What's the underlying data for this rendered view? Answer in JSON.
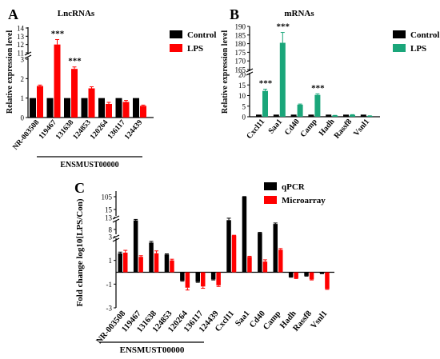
{
  "colors": {
    "control": "#000000",
    "lps": "#ff0000",
    "lps_b": "#1aa67a",
    "microarray": "#ff0000",
    "qpcr": "#000000"
  },
  "chart_data": [
    {
      "panel": "A",
      "title": "LncRNAs",
      "type": "bar",
      "ylabel": "Relative expression level",
      "categories": [
        "NR-003508",
        "119467",
        "131638",
        "124853",
        "120264",
        "136117",
        "124439"
      ],
      "group_label": "ENSMUST00000",
      "y_ticks": [
        "0",
        "1",
        "2",
        "3",
        "11",
        "12",
        "13",
        "14"
      ],
      "series": [
        {
          "name": "Control",
          "values": [
            1,
            1,
            1,
            1,
            1,
            1,
            1
          ],
          "errors": [
            0,
            0,
            0,
            0,
            0,
            0,
            0
          ]
        },
        {
          "name": "LPS",
          "values": [
            1.62,
            12.0,
            2.5,
            1.5,
            0.7,
            0.8,
            0.6
          ],
          "errors": [
            0.05,
            0.6,
            0.1,
            0.08,
            0.08,
            0.08,
            0.04
          ]
        }
      ],
      "annotations": [
        {
          "category": "119467",
          "text": "***"
        },
        {
          "category": "131638",
          "text": "***"
        }
      ],
      "legend": "top-right"
    },
    {
      "panel": "B",
      "title": "mRNAs",
      "type": "bar",
      "ylabel": "Relative expression level",
      "categories": [
        "Cxcl11",
        "Saa1",
        "Cd40",
        "Camp",
        "Hadh",
        "Rassf8",
        "Vsnl1"
      ],
      "y_ticks": [
        "0",
        "5",
        "10",
        "15",
        "20",
        "165",
        "170",
        "175",
        "180",
        "185",
        "190"
      ],
      "series": [
        {
          "name": "Control",
          "values": [
            1,
            1,
            1,
            1,
            1,
            1,
            1
          ],
          "errors": [
            0,
            0,
            0,
            0,
            0,
            0,
            0
          ]
        },
        {
          "name": "LPS",
          "values": [
            12.2,
            180.5,
            5.7,
            10.3,
            0.6,
            0.9,
            0.4
          ],
          "errors": [
            0.8,
            6.0,
            0.3,
            0.5,
            0.05,
            0.1,
            0.05
          ]
        }
      ],
      "annotations": [
        {
          "category": "Cxcl11",
          "text": "***"
        },
        {
          "category": "Saa1",
          "text": "***"
        },
        {
          "category": "Camp",
          "text": "***"
        }
      ],
      "legend": "top-right"
    },
    {
      "panel": "C",
      "type": "bar",
      "ylabel": "Fold change log10[LPS/Con)",
      "categories": [
        "NR-003508",
        "119467",
        "131638",
        "124853",
        "120264",
        "136117",
        "124439",
        "Cxcl11",
        "Saa1",
        "Cd40",
        "Camp",
        "Hadh",
        "Rassf8",
        "Vsnl1"
      ],
      "group_label": "ENSMUST00000",
      "y_ticks": [
        "-3",
        "-1",
        "1",
        "3",
        "8",
        "13",
        "15",
        "105"
      ],
      "series": [
        {
          "name": "qPCR",
          "values": [
            1.6,
            11.8,
            2.5,
            1.5,
            -0.7,
            -0.8,
            -0.6,
            11.9,
            105,
            5.7,
            10.3,
            -0.4,
            -0.3,
            -0.1
          ],
          "errors": [
            0.1,
            0.4,
            0.1,
            0.05,
            0.05,
            0.05,
            0.05,
            0.8,
            1.0,
            0.3,
            0.4,
            0.02,
            0.03,
            0.02
          ]
        },
        {
          "name": "Microarray",
          "values": [
            1.65,
            1.3,
            1.6,
            1.0,
            -1.3,
            -1.2,
            -1.1,
            3.8,
            1.3,
            0.9,
            1.9,
            -0.5,
            -0.6,
            -1.4
          ],
          "errors": [
            0.2,
            0.1,
            0.2,
            0.1,
            0.2,
            0.15,
            0.1,
            0.2,
            0.05,
            0.15,
            0.1,
            0.03,
            0.05,
            0.05
          ]
        }
      ],
      "legend": "top-right"
    }
  ]
}
